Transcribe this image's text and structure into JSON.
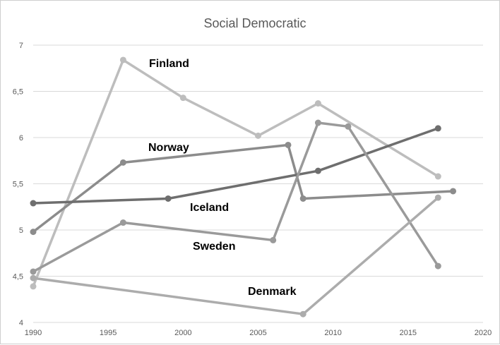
{
  "chart_data": {
    "type": "line",
    "title": "Social Democratic",
    "xlabel": "",
    "ylabel": "",
    "xlim": [
      1990,
      2020
    ],
    "ylim": [
      4,
      7
    ],
    "x_ticks": [
      "1990",
      "1995",
      "2000",
      "2005",
      "2010",
      "2015",
      "2020"
    ],
    "x_tick_values": [
      1990,
      1995,
      2000,
      2005,
      2010,
      2015,
      2020
    ],
    "y_ticks": [
      "4",
      "4,5",
      "5",
      "5,5",
      "6",
      "6,5",
      "7"
    ],
    "y_tick_values": [
      4,
      4.5,
      5,
      5.5,
      6,
      6.5,
      7
    ],
    "grid": true,
    "legend": "none",
    "series": [
      {
        "name": "Finland",
        "color": "#bdbdbd",
        "points": [
          [
            1990,
            4.39
          ],
          [
            1996,
            6.84
          ],
          [
            2000,
            6.43
          ],
          [
            2005,
            6.02
          ],
          [
            2009,
            6.37
          ],
          [
            2017,
            5.58
          ]
        ]
      },
      {
        "name": "Norway",
        "color": "#8c8c8c",
        "points": [
          [
            1990,
            4.98
          ],
          [
            1996,
            5.73
          ],
          [
            2007,
            5.92
          ],
          [
            2008,
            5.34
          ],
          [
            2018,
            5.42
          ]
        ]
      },
      {
        "name": "Iceland",
        "color": "#6e6e6e",
        "points": [
          [
            1990,
            5.29
          ],
          [
            1999,
            5.34
          ],
          [
            2009,
            5.64
          ],
          [
            2017,
            6.1
          ]
        ]
      },
      {
        "name": "Sweden",
        "color": "#9a9a9a",
        "points": [
          [
            1990,
            4.55
          ],
          [
            1996,
            5.08
          ],
          [
            2006,
            4.89
          ],
          [
            2009,
            6.16
          ],
          [
            2011,
            6.12
          ],
          [
            2017,
            4.61
          ]
        ]
      },
      {
        "name": "Denmark",
        "color": "#acacac",
        "points": [
          [
            1990,
            4.48
          ],
          [
            2008,
            4.09
          ],
          [
            2017,
            5.35
          ]
        ]
      }
    ]
  }
}
